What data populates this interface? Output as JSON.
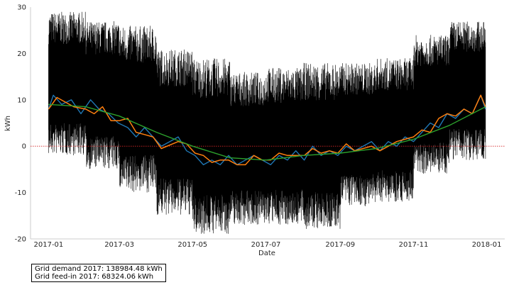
{
  "chart_data": {
    "type": "line",
    "title": "",
    "xlabel": "Date",
    "ylabel": "kWh",
    "x_range": [
      "2016-12-17",
      "2018-01-16"
    ],
    "ylim": [
      -20,
      30
    ],
    "x_tick_labels": [
      "2017-01",
      "2017-03",
      "2017-05",
      "2017-07",
      "2017-09",
      "2017-11",
      "2018-01"
    ],
    "y_tick_labels": [
      "-20",
      "-10",
      "0",
      "10",
      "20",
      "30"
    ],
    "grid": false,
    "reference_line": {
      "y": 0,
      "color": "#d62728",
      "style": "dotted"
    },
    "series": [
      {
        "kind": "hourly raw data (dense black line)",
        "color": "#000000",
        "envelope_monthly": [
          {
            "month": "2017-01",
            "min": -2,
            "max": 29
          },
          {
            "month": "2017-02",
            "min": -5,
            "max": 27
          },
          {
            "month": "2017-03",
            "min": -10,
            "max": 26
          },
          {
            "month": "2017-04",
            "min": -15,
            "max": 21
          },
          {
            "month": "2017-05",
            "min": -19,
            "max": 19
          },
          {
            "month": "2017-06",
            "min": -17,
            "max": 16
          },
          {
            "month": "2017-07",
            "min": -17,
            "max": 17
          },
          {
            "month": "2017-08",
            "min": -18,
            "max": 18
          },
          {
            "month": "2017-09",
            "min": -13,
            "max": 18
          },
          {
            "month": "2017-10",
            "min": -12,
            "max": 19
          },
          {
            "month": "2017-11",
            "min": -6,
            "max": 24
          },
          {
            "month": "2017-12",
            "min": -3,
            "max": 27
          }
        ]
      },
      {
        "kind": "daily mean",
        "color": "#1f77b4",
        "points": [
          [
            "2017-01-01",
            8
          ],
          [
            "2017-01-05",
            11
          ],
          [
            "2017-01-12",
            9
          ],
          [
            "2017-01-20",
            10
          ],
          [
            "2017-01-28",
            7
          ],
          [
            "2017-02-05",
            10
          ],
          [
            "2017-02-12",
            8
          ],
          [
            "2017-02-20",
            7
          ],
          [
            "2017-02-28",
            5
          ],
          [
            "2017-03-08",
            4
          ],
          [
            "2017-03-15",
            2
          ],
          [
            "2017-03-22",
            4
          ],
          [
            "2017-03-29",
            2
          ],
          [
            "2017-04-05",
            0
          ],
          [
            "2017-04-12",
            1
          ],
          [
            "2017-04-19",
            2
          ],
          [
            "2017-04-26",
            -1
          ],
          [
            "2017-05-03",
            -2
          ],
          [
            "2017-05-10",
            -4
          ],
          [
            "2017-05-17",
            -3
          ],
          [
            "2017-05-24",
            -4
          ],
          [
            "2017-05-31",
            -2
          ],
          [
            "2017-06-07",
            -4
          ],
          [
            "2017-06-14",
            -3
          ],
          [
            "2017-06-21",
            -2
          ],
          [
            "2017-06-28",
            -3
          ],
          [
            "2017-07-05",
            -4
          ],
          [
            "2017-07-12",
            -2
          ],
          [
            "2017-07-19",
            -3
          ],
          [
            "2017-07-26",
            -1
          ],
          [
            "2017-08-02",
            -3
          ],
          [
            "2017-08-09",
            0
          ],
          [
            "2017-08-16",
            -2
          ],
          [
            "2017-08-23",
            -1
          ],
          [
            "2017-08-30",
            -2
          ],
          [
            "2017-09-06",
            0
          ],
          [
            "2017-09-13",
            -1
          ],
          [
            "2017-09-20",
            0
          ],
          [
            "2017-09-27",
            1
          ],
          [
            "2017-10-04",
            -1
          ],
          [
            "2017-10-11",
            1
          ],
          [
            "2017-10-18",
            0
          ],
          [
            "2017-10-25",
            2
          ],
          [
            "2017-11-01",
            1
          ],
          [
            "2017-11-08",
            3
          ],
          [
            "2017-11-15",
            5
          ],
          [
            "2017-11-22",
            4
          ],
          [
            "2017-11-29",
            7
          ],
          [
            "2017-12-06",
            6
          ],
          [
            "2017-12-13",
            8
          ],
          [
            "2017-12-20",
            7
          ],
          [
            "2017-12-27",
            11
          ],
          [
            "2017-12-31",
            8
          ]
        ]
      },
      {
        "kind": "weekly mean",
        "color": "#ff7f0e",
        "points": [
          [
            "2017-01-01",
            8
          ],
          [
            "2017-01-08",
            10.5
          ],
          [
            "2017-01-22",
            8.5
          ],
          [
            "2017-02-01",
            8
          ],
          [
            "2017-02-08",
            7
          ],
          [
            "2017-02-15",
            8.5
          ],
          [
            "2017-02-22",
            5.5
          ],
          [
            "2017-03-01",
            5.5
          ],
          [
            "2017-03-08",
            6
          ],
          [
            "2017-03-15",
            3
          ],
          [
            "2017-03-22",
            2.5
          ],
          [
            "2017-03-29",
            2
          ],
          [
            "2017-04-05",
            -0.5
          ],
          [
            "2017-04-19",
            1
          ],
          [
            "2017-04-26",
            0.5
          ],
          [
            "2017-05-03",
            -1.5
          ],
          [
            "2017-05-10",
            -2
          ],
          [
            "2017-05-17",
            -3.5
          ],
          [
            "2017-05-24",
            -3
          ],
          [
            "2017-05-31",
            -3
          ],
          [
            "2017-06-07",
            -4
          ],
          [
            "2017-06-14",
            -4
          ],
          [
            "2017-06-21",
            -2
          ],
          [
            "2017-06-28",
            -3
          ],
          [
            "2017-07-05",
            -3
          ],
          [
            "2017-07-12",
            -1.5
          ],
          [
            "2017-07-19",
            -2
          ],
          [
            "2017-07-26",
            -2
          ],
          [
            "2017-08-02",
            -2
          ],
          [
            "2017-08-09",
            -0.5
          ],
          [
            "2017-08-16",
            -1.5
          ],
          [
            "2017-08-23",
            -1
          ],
          [
            "2017-08-30",
            -1.5
          ],
          [
            "2017-09-06",
            0.5
          ],
          [
            "2017-09-13",
            -1
          ],
          [
            "2017-09-20",
            -0.5
          ],
          [
            "2017-09-27",
            0
          ],
          [
            "2017-10-04",
            -1
          ],
          [
            "2017-10-11",
            0
          ],
          [
            "2017-10-18",
            1
          ],
          [
            "2017-10-25",
            1.5
          ],
          [
            "2017-11-01",
            2
          ],
          [
            "2017-11-08",
            3.5
          ],
          [
            "2017-11-15",
            3
          ],
          [
            "2017-11-22",
            6
          ],
          [
            "2017-11-29",
            7
          ],
          [
            "2017-12-06",
            6.5
          ],
          [
            "2017-12-13",
            8
          ],
          [
            "2017-12-20",
            7
          ],
          [
            "2017-12-27",
            11
          ],
          [
            "2017-12-31",
            8.5
          ]
        ]
      },
      {
        "kind": "monthly mean",
        "color": "#2ca02c",
        "points": [
          [
            "2017-01-01",
            9
          ],
          [
            "2017-02-01",
            8.5
          ],
          [
            "2017-03-01",
            6.5
          ],
          [
            "2017-04-01",
            3
          ],
          [
            "2017-05-01",
            0
          ],
          [
            "2017-06-01",
            -2.5
          ],
          [
            "2017-07-01",
            -3
          ],
          [
            "2017-08-01",
            -2
          ],
          [
            "2017-09-01",
            -1.5
          ],
          [
            "2017-10-01",
            -0.5
          ],
          [
            "2017-11-01",
            1.5
          ],
          [
            "2017-12-01",
            4.5
          ],
          [
            "2017-12-31",
            8.5
          ]
        ]
      }
    ]
  },
  "info_box": {
    "line1": "Grid demand 2017: 138984.48 kWh",
    "line2": "Grid feed-in 2017: 68324.06 kWh"
  }
}
